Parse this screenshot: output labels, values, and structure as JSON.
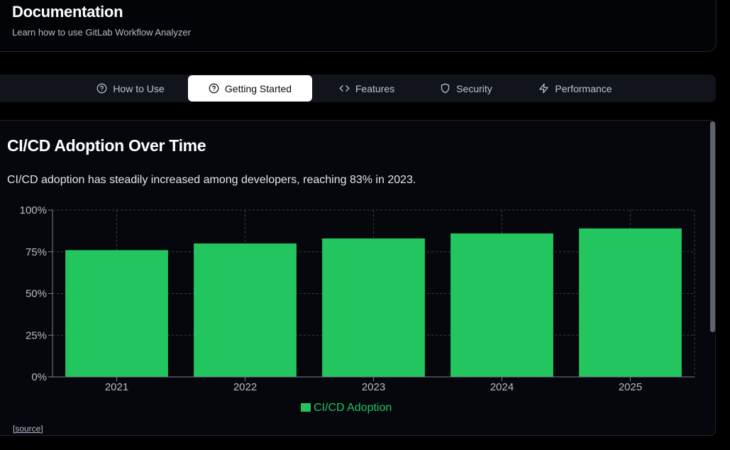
{
  "header": {
    "title": "Documentation",
    "subtitle": "Learn how to use GitLab Workflow Analyzer"
  },
  "tabs": [
    {
      "label": "How to Use",
      "icon": "help-circle-icon"
    },
    {
      "label": "Getting Started",
      "icon": "help-circle-icon",
      "active": true
    },
    {
      "label": "Features",
      "icon": "code-icon"
    },
    {
      "label": "Security",
      "icon": "shield-icon"
    },
    {
      "label": "Performance",
      "icon": "zap-icon"
    }
  ],
  "section": {
    "title": "CI/CD Adoption Over Time",
    "description": "CI/CD adoption has steadily increased among developers, reaching 83% in 2023.",
    "source_label": "[source]"
  },
  "colors": {
    "bar": "#22c55e",
    "grid": "#3a3f4a",
    "axis_text": "#b8bcc4"
  },
  "chart_data": {
    "type": "bar",
    "title": "CI/CD Adoption Over Time",
    "categories": [
      "2021",
      "2022",
      "2023",
      "2024",
      "2025"
    ],
    "series": [
      {
        "name": "CI/CD Adoption",
        "values": [
          76,
          80,
          83,
          86,
          89
        ]
      }
    ],
    "ylim": [
      0,
      100
    ],
    "yticks": [
      "0%",
      "25%",
      "50%",
      "75%",
      "100%"
    ],
    "ytick_values": [
      0,
      25,
      50,
      75,
      100
    ],
    "xlabel": "",
    "ylabel": "",
    "grid": true,
    "legend": "bottom-center"
  }
}
